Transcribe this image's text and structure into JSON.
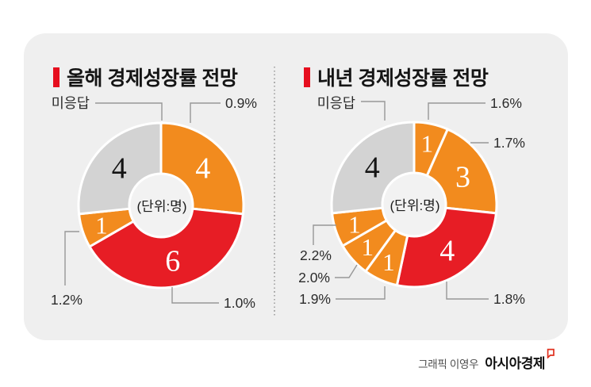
{
  "palette": {
    "orange": "#F28B1E",
    "red": "#E71D25",
    "gray": "#D3D3D3",
    "title_bar_red": "#E60E1E",
    "leader_line": "#979797",
    "hole_fill": "#F2F2F2",
    "card_background": "#EFEFEF",
    "page_background": "#FFFFFF",
    "logo_mark_red": "#E0301E"
  },
  "credits": {
    "graphic_by": "그래픽 이영우",
    "publisher": "아시아경제"
  },
  "chart_data": [
    {
      "type": "donut",
      "title": "올해 경제성장률 전망",
      "center_label": "(단위:명)",
      "unit": "명",
      "total": 15,
      "direction": "clockwise",
      "start_angle_deg": 0,
      "segments": [
        {
          "label": "0.9%",
          "value": 4,
          "color": "orange"
        },
        {
          "label": "1.0%",
          "value": 6,
          "color": "red"
        },
        {
          "label": "1.2%",
          "value": 1,
          "color": "orange"
        },
        {
          "label": "미응답",
          "value": 4,
          "color": "gray"
        }
      ]
    },
    {
      "type": "donut",
      "title": "내년 경제성장률 전망",
      "center_label": "(단위:명)",
      "unit": "명",
      "total": 15,
      "direction": "clockwise",
      "start_angle_deg": 0,
      "segments": [
        {
          "label": "1.6%",
          "value": 1,
          "color": "orange"
        },
        {
          "label": "1.7%",
          "value": 3,
          "color": "orange"
        },
        {
          "label": "1.8%",
          "value": 4,
          "color": "red"
        },
        {
          "label": "1.9%",
          "value": 1,
          "color": "orange"
        },
        {
          "label": "2.0%",
          "value": 1,
          "color": "orange"
        },
        {
          "label": "2.2%",
          "value": 1,
          "color": "orange"
        },
        {
          "label": "미응답",
          "value": 4,
          "color": "gray"
        }
      ]
    }
  ]
}
